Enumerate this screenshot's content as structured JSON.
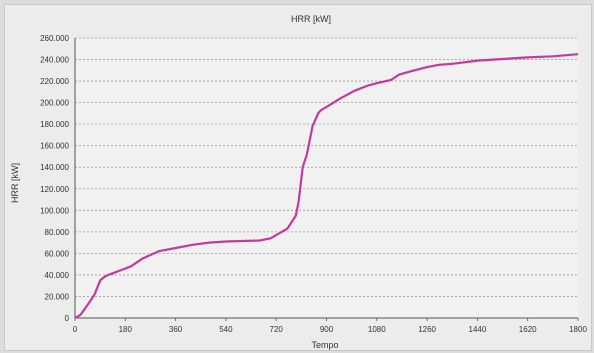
{
  "chart_data": {
    "type": "line",
    "title": "HRR [kW]",
    "xlabel": "Tempo",
    "ylabel": "HRR [kW]",
    "xlim": [
      0,
      1800
    ],
    "ylim": [
      0,
      260000
    ],
    "x_ticks": [
      "0",
      "180",
      "360",
      "540",
      "720",
      "900",
      "1080",
      "1260",
      "1440",
      "1620",
      "1800"
    ],
    "y_ticks": [
      "0",
      "20.000",
      "40.000",
      "60.000",
      "80.000",
      "100.000",
      "120.000",
      "140.000",
      "160.000",
      "180.000",
      "200.000",
      "220.000",
      "240.000",
      "260.000"
    ],
    "grid": true,
    "line_color": "#c4399e",
    "series": [
      {
        "x": [
          0,
          20,
          50,
          70,
          90,
          110,
          130,
          160,
          180,
          200,
          240,
          300,
          360,
          420,
          480,
          540,
          600,
          660,
          700,
          720,
          760,
          790,
          800,
          815,
          830,
          850,
          870,
          880,
          900,
          950,
          1000,
          1050,
          1080,
          1130,
          1160,
          1200,
          1260,
          1300,
          1350,
          1440,
          1530,
          1620,
          1710,
          1800
        ],
        "y": [
          0,
          3000,
          14000,
          22000,
          35000,
          39000,
          41000,
          44000,
          46000,
          48000,
          55000,
          62000,
          65000,
          68000,
          70000,
          71000,
          71500,
          72000,
          74000,
          77000,
          83000,
          95000,
          108000,
          140000,
          152000,
          178000,
          190000,
          193000,
          196000,
          204000,
          211000,
          216000,
          218000,
          221000,
          226000,
          229000,
          233000,
          235000,
          236000,
          239000,
          240500,
          242000,
          243000,
          245000
        ]
      }
    ]
  }
}
